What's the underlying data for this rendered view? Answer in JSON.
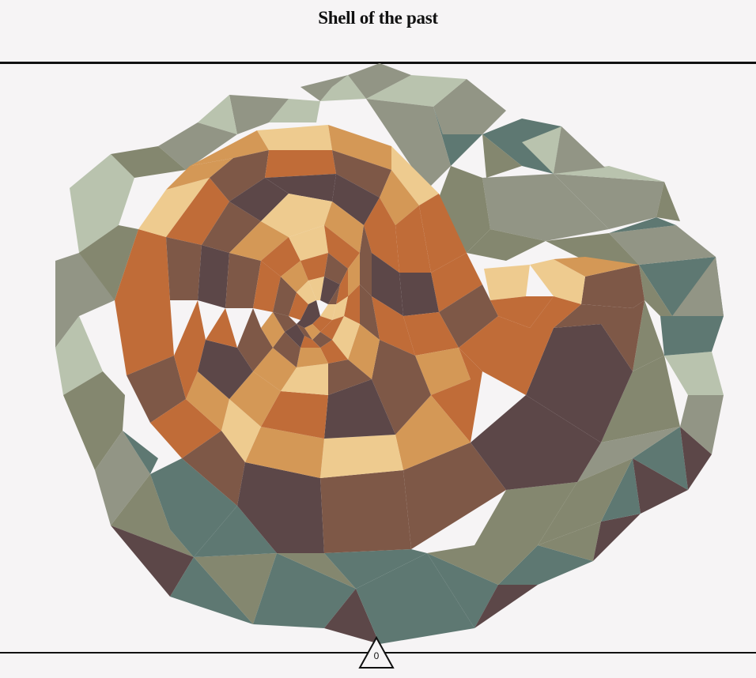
{
  "puzzle": {
    "title": "Shell of the past",
    "counter": "0"
  },
  "palette": {
    "background": "#f6f4f5",
    "sage_light": "#b9c3ae",
    "sage_mid": "#929585",
    "olive": "#84876f",
    "teal": "#5e7872",
    "plum": "#5c4748",
    "brown": "#7e5847",
    "rust": "#c06c38",
    "ochre": "#d49856",
    "cream": "#eecb8f"
  }
}
